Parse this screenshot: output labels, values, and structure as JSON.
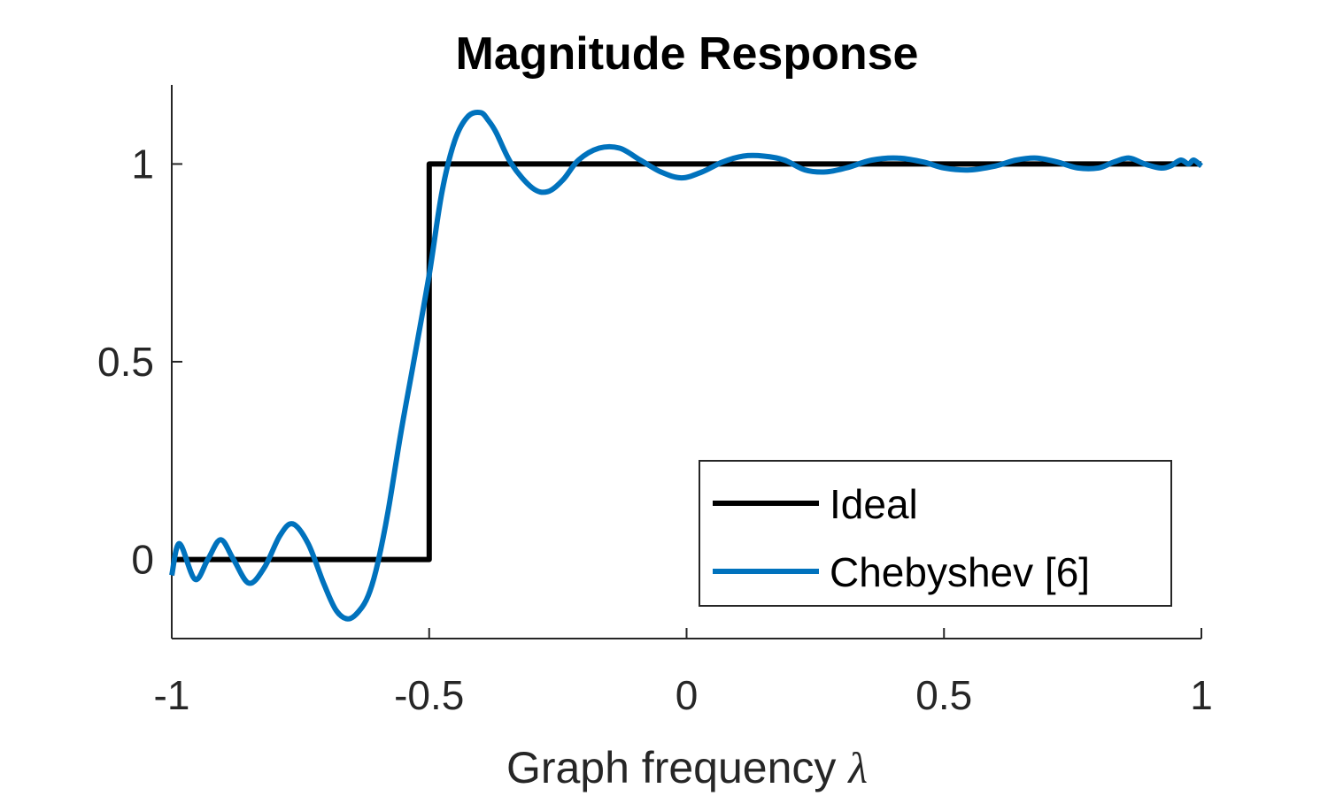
{
  "chart_data": {
    "type": "line",
    "title": "Magnitude Response",
    "xlabel": "Graph frequency",
    "xlabel_symbol": "λ",
    "ylabel": "",
    "xlim": [
      -1,
      1
    ],
    "ylim": [
      -0.2,
      1.2
    ],
    "xticks": [
      -1,
      -0.5,
      0,
      0.5,
      1
    ],
    "xtick_labels": [
      "-1",
      "-0.5",
      "0",
      "0.5",
      "1"
    ],
    "yticks": [
      0,
      0.5,
      1
    ],
    "ytick_labels": [
      "0",
      "0.5",
      "1"
    ],
    "grid": false,
    "legend_position": "bottom-right",
    "series": [
      {
        "name": "Ideal",
        "color": "#000000",
        "x": [
          -1,
          -0.5,
          -0.5,
          1
        ],
        "y": [
          0,
          0,
          1,
          1
        ]
      },
      {
        "name": "Chebyshev [6]",
        "color": "#0072BD",
        "x": [
          -1,
          -0.985,
          -0.955,
          -0.93,
          -0.905,
          -0.88,
          -0.85,
          -0.82,
          -0.79,
          -0.765,
          -0.735,
          -0.705,
          -0.68,
          -0.655,
          -0.63,
          -0.615,
          -0.6,
          -0.58,
          -0.555,
          -0.53,
          -0.5,
          -0.475,
          -0.45,
          -0.425,
          -0.4,
          -0.385,
          -0.37,
          -0.34,
          -0.3,
          -0.27,
          -0.24,
          -0.21,
          -0.17,
          -0.13,
          -0.09,
          -0.05,
          -0.01,
          0.03,
          0.07,
          0.11,
          0.15,
          0.19,
          0.23,
          0.27,
          0.31,
          0.36,
          0.41,
          0.46,
          0.5,
          0.55,
          0.6,
          0.64,
          0.68,
          0.72,
          0.76,
          0.8,
          0.83,
          0.86,
          0.89,
          0.92,
          0.94,
          0.96,
          0.975,
          0.985,
          1
        ],
        "y": [
          -0.04,
          0.04,
          -0.05,
          0.0,
          0.05,
          0.0,
          -0.06,
          -0.02,
          0.06,
          0.09,
          0.04,
          -0.06,
          -0.13,
          -0.15,
          -0.12,
          -0.08,
          -0.01,
          0.12,
          0.32,
          0.5,
          0.72,
          0.93,
          1.06,
          1.12,
          1.13,
          1.11,
          1.08,
          1.0,
          0.94,
          0.93,
          0.96,
          1.01,
          1.04,
          1.04,
          1.01,
          0.98,
          0.965,
          0.98,
          1.005,
          1.02,
          1.02,
          1.01,
          0.985,
          0.98,
          0.99,
          1.01,
          1.015,
          1.005,
          0.99,
          0.985,
          0.995,
          1.01,
          1.015,
          1.005,
          0.99,
          0.99,
          1.005,
          1.015,
          1.0,
          0.99,
          0.995,
          1.01,
          1.0,
          1.01,
          0.995
        ]
      }
    ]
  }
}
